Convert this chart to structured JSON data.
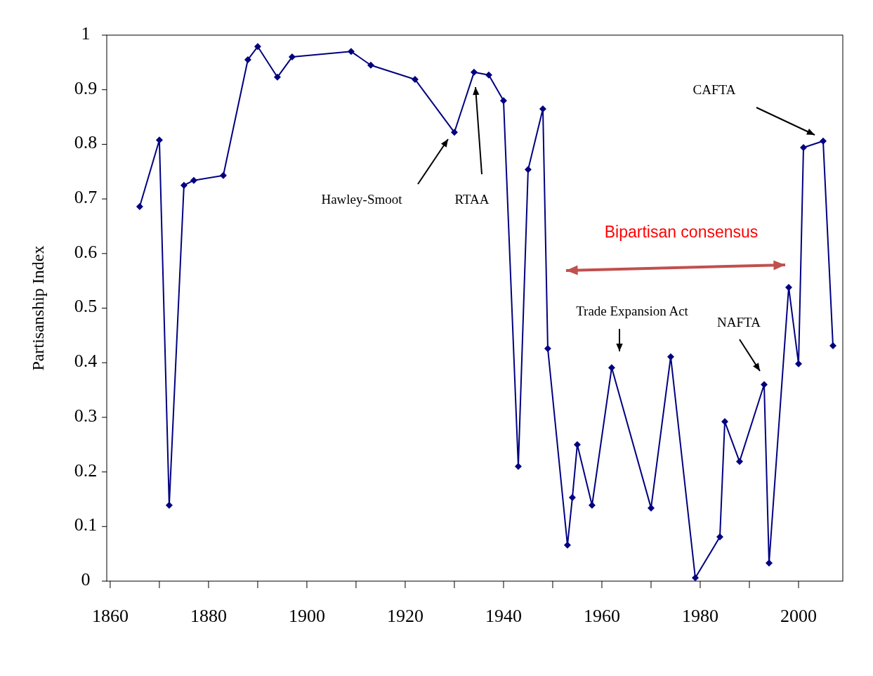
{
  "chart_data": {
    "type": "line",
    "ylabel": "Partisanship Index",
    "x": [
      1866,
      1870,
      1872,
      1875,
      1877,
      1883,
      1888,
      1890,
      1894,
      1897,
      1909,
      1913,
      1922,
      1930,
      1934,
      1937,
      1940,
      1943,
      1945,
      1948,
      1949,
      1953,
      1954,
      1955,
      1958,
      1962,
      1970,
      1974,
      1979,
      1984,
      1985,
      1988,
      1993,
      1994,
      1998,
      2000,
      2001,
      2005,
      2007
    ],
    "series": [
      {
        "color": "#000080",
        "values": [
          0.686,
          0.808,
          0.139,
          0.725,
          0.734,
          0.743,
          0.955,
          0.979,
          0.923,
          0.96,
          0.97,
          0.945,
          0.919,
          0.822,
          0.932,
          0.927,
          0.88,
          0.21,
          0.754,
          0.865,
          0.426,
          0.066,
          0.153,
          0.25,
          0.139,
          0.391,
          0.134,
          0.411,
          0.006,
          0.081,
          0.292,
          0.219,
          0.36,
          0.033,
          0.538,
          0.398,
          0.794,
          0.806,
          0.431
        ]
      }
    ],
    "xlim": [
      1859.3,
      2009
    ],
    "xticks": [
      1860,
      {
        "value": 1870,
        "label": null
      },
      1880,
      {
        "value": 1890,
        "label": null
      },
      1900,
      {
        "value": 1910,
        "label": null
      },
      1920,
      {
        "value": 1930,
        "label": null
      },
      1940,
      {
        "value": 1950,
        "label": null
      },
      1960,
      {
        "value": 1970,
        "label": null
      },
      1980,
      {
        "value": 1990,
        "label": null
      },
      2000
    ],
    "ylim": [
      0,
      1
    ],
    "yticks": [
      0,
      0.1,
      0.2,
      0.3,
      0.4,
      0.5,
      0.6,
      0.7,
      0.8,
      0.9,
      1
    ],
    "marker": "diamond",
    "line_style": "solid",
    "grid": false,
    "annotations": [
      "Hawley-Smoot",
      "RTAA",
      "Trade Expansion Act",
      "NAFTA",
      "CAFTA",
      "Bipartisan consensus"
    ]
  }
}
